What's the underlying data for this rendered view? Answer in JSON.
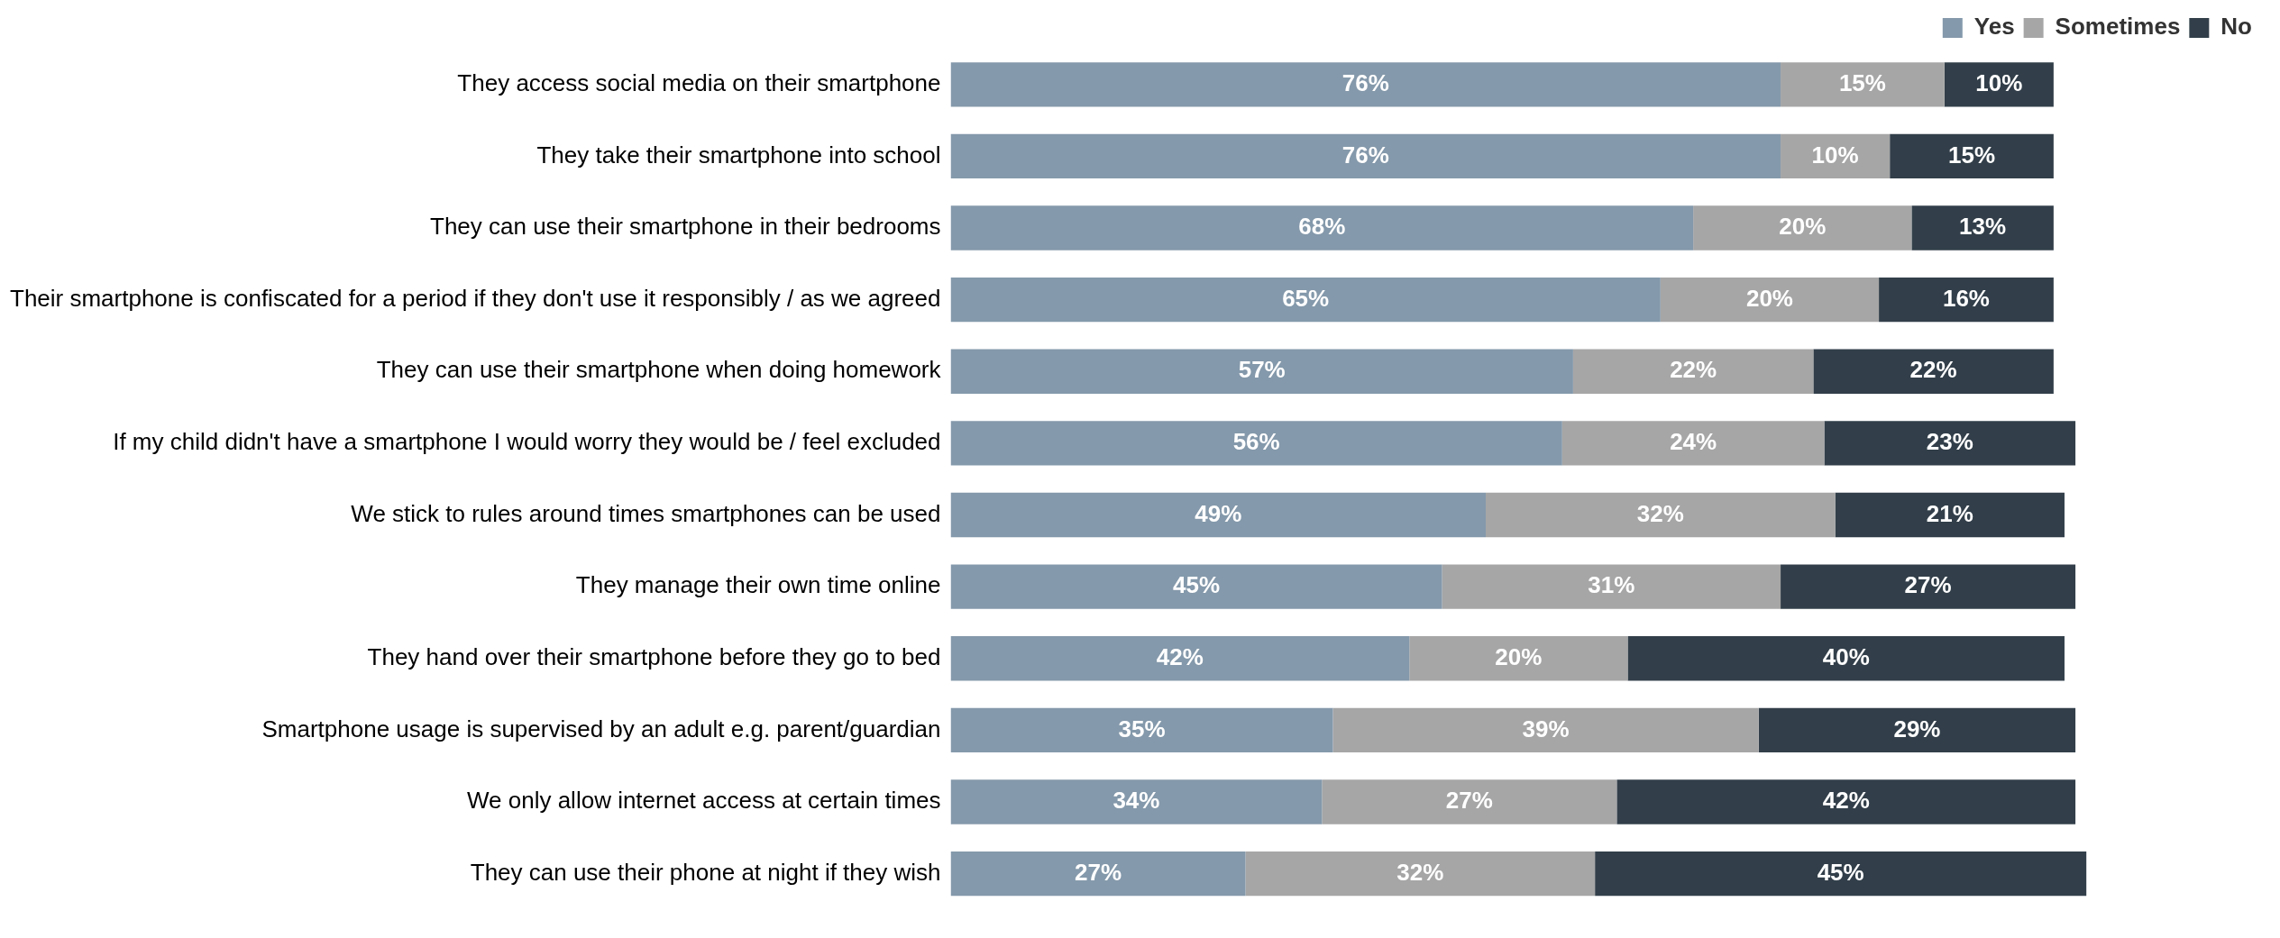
{
  "chart_data": {
    "type": "bar",
    "orientation": "horizontal",
    "stacked": true,
    "tick_labels": "y",
    "legend": "top right",
    "categories": [
      "They access social media on their smartphone",
      "They take their smartphone into school",
      "They can use their smartphone in their bedrooms",
      "Their smartphone is confiscated for a period if they don't use it responsibly / as we agreed",
      "They can use their smartphone when doing homework",
      "If my child didn't have a smartphone I would worry they would be / feel excluded",
      "We stick to rules around times smartphones can be used",
      "They manage their own time online",
      "They hand over their smartphone before they go to bed",
      "Smartphone usage is supervised by an adult e.g. parent/guardian",
      "We only allow internet access at certain times",
      "They can use their phone at night if they wish"
    ],
    "series": [
      {
        "name": "Yes",
        "color": "#8499ab",
        "values": [
          76,
          76,
          68,
          65,
          57,
          56,
          49,
          45,
          42,
          35,
          34,
          27
        ],
        "value_labels": [
          "76%",
          "76%",
          "68%",
          "65%",
          "57%",
          "56%",
          "49%",
          "45%",
          "42%",
          "35%",
          "34%",
          "27%"
        ]
      },
      {
        "name": "Sometimes",
        "color": "#a6a6a6",
        "values": [
          15,
          10,
          20,
          20,
          22,
          24,
          32,
          31,
          20,
          39,
          27,
          32
        ],
        "value_labels": [
          "15%",
          "10%",
          "20%",
          "20%",
          "22%",
          "24%",
          "32%",
          "31%",
          "20%",
          "39%",
          "27%",
          "32%"
        ]
      },
      {
        "name": "No",
        "color": "#323f4a",
        "values": [
          10,
          15,
          13,
          16,
          22,
          23,
          21,
          27,
          40,
          29,
          42,
          45
        ],
        "value_labels": [
          "10%",
          "15%",
          "13%",
          "16%",
          "22%",
          "23%",
          "21%",
          "27%",
          "40%",
          "29%",
          "42%",
          "45%"
        ]
      }
    ]
  }
}
